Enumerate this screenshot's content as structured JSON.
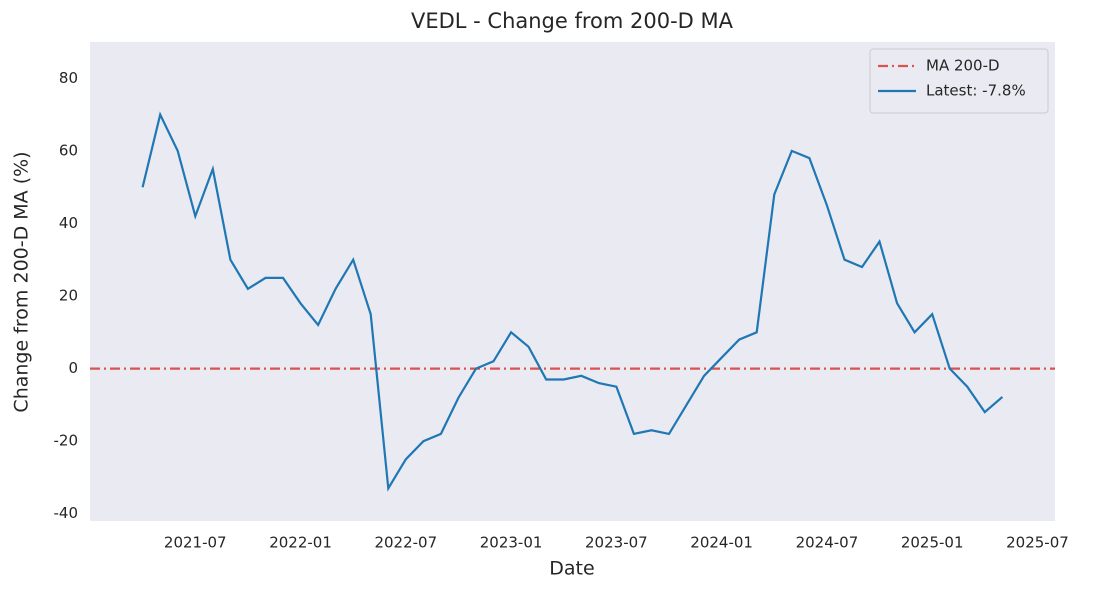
{
  "chart_data": {
    "type": "line",
    "title": "VEDL - Change from 200-D MA",
    "xlabel": "Date",
    "ylabel": "Change from 200-D MA (%)",
    "x": [
      "2021-04",
      "2021-05",
      "2021-06",
      "2021-07",
      "2021-08",
      "2021-09",
      "2021-10",
      "2021-11",
      "2021-12",
      "2022-01",
      "2022-02",
      "2022-03",
      "2022-04",
      "2022-05",
      "2022-06",
      "2022-07",
      "2022-08",
      "2022-09",
      "2022-10",
      "2022-11",
      "2022-12",
      "2023-01",
      "2023-02",
      "2023-03",
      "2023-04",
      "2023-05",
      "2023-06",
      "2023-07",
      "2023-08",
      "2023-09",
      "2023-10",
      "2023-11",
      "2023-12",
      "2024-01",
      "2024-02",
      "2024-03",
      "2024-04",
      "2024-05",
      "2024-06",
      "2024-07",
      "2024-08",
      "2024-09",
      "2024-10",
      "2024-11",
      "2024-12",
      "2025-01",
      "2025-02",
      "2025-03",
      "2025-04",
      "2025-05"
    ],
    "series": [
      {
        "name": "Latest: -7.8%",
        "color": "#1f77b4",
        "values": [
          50,
          70,
          60,
          42,
          55,
          30,
          22,
          25,
          25,
          18,
          12,
          22,
          30,
          15,
          -33,
          -25,
          -20,
          -18,
          -8,
          0,
          2,
          10,
          6,
          -3,
          -3,
          -2,
          -4,
          -5,
          -18,
          -17,
          -18,
          -10,
          -2,
          3,
          8,
          10,
          48,
          60,
          58,
          45,
          30,
          28,
          35,
          18,
          10,
          15,
          0,
          -5,
          -12,
          -7.8
        ]
      }
    ],
    "hline": {
      "name": "MA 200-D",
      "color": "#d9534f",
      "value": 0
    },
    "xlim": [
      "2021-01",
      "2025-08"
    ],
    "xticks": [
      "2021-07",
      "2022-01",
      "2022-07",
      "2023-01",
      "2023-07",
      "2024-01",
      "2024-07",
      "2025-01",
      "2025-07"
    ],
    "ylim": [
      -42,
      90
    ],
    "yticks": [
      -40,
      -20,
      0,
      20,
      40,
      60,
      80
    ],
    "grid": false,
    "legend": "upper right"
  }
}
